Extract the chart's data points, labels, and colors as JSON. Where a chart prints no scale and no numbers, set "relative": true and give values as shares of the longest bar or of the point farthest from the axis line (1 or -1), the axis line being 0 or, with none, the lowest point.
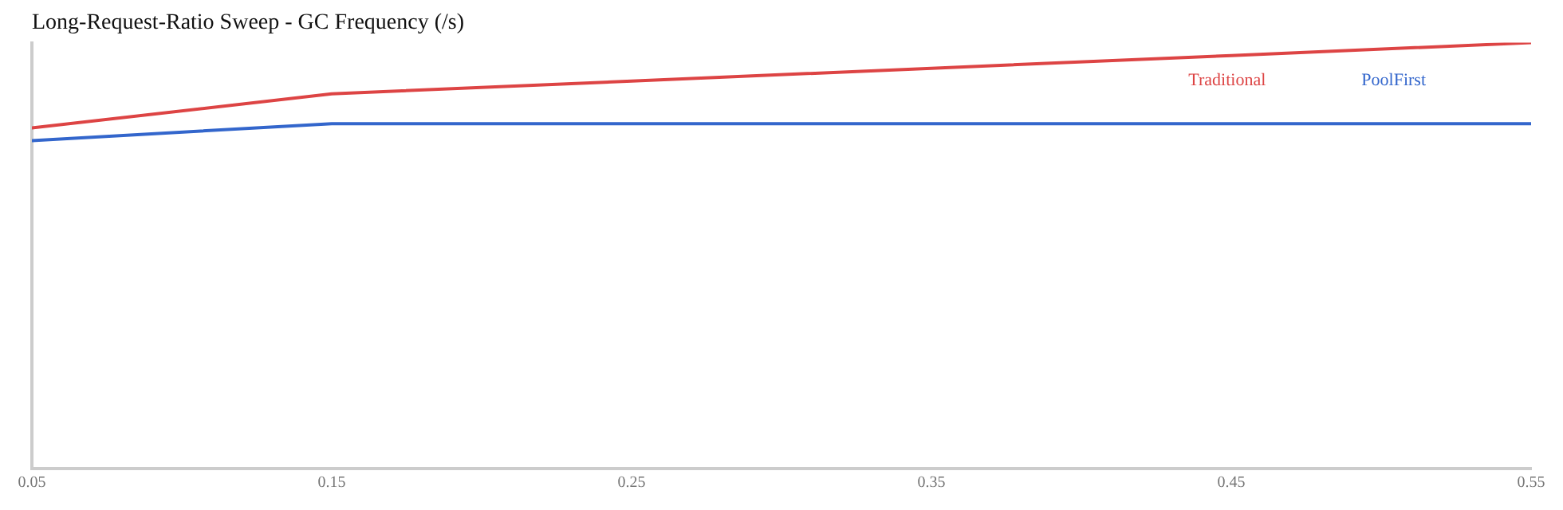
{
  "chart_data": {
    "type": "line",
    "title": "Long-Request-Ratio Sweep - GC Frequency (/s)",
    "relative": true,
    "x": [
      0.05,
      0.15,
      0.25,
      0.35,
      0.45,
      0.55
    ],
    "xlim": [
      0.05,
      0.55
    ],
    "xticks": [
      0.05,
      0.15,
      0.25,
      0.35,
      0.45,
      0.55
    ],
    "series": [
      {
        "name": "Traditional",
        "color": "#dd4444",
        "values": [
          0.8,
          0.88,
          0.91,
          0.94,
          0.97,
          1
        ]
      },
      {
        "name": "PoolFirst",
        "color": "#3366cc",
        "values": [
          0.77,
          0.81,
          0.81,
          0.81,
          0.81,
          0.81
        ]
      }
    ],
    "grid": false,
    "legend": "top right",
    "marker": "none",
    "line_style": "solid"
  }
}
